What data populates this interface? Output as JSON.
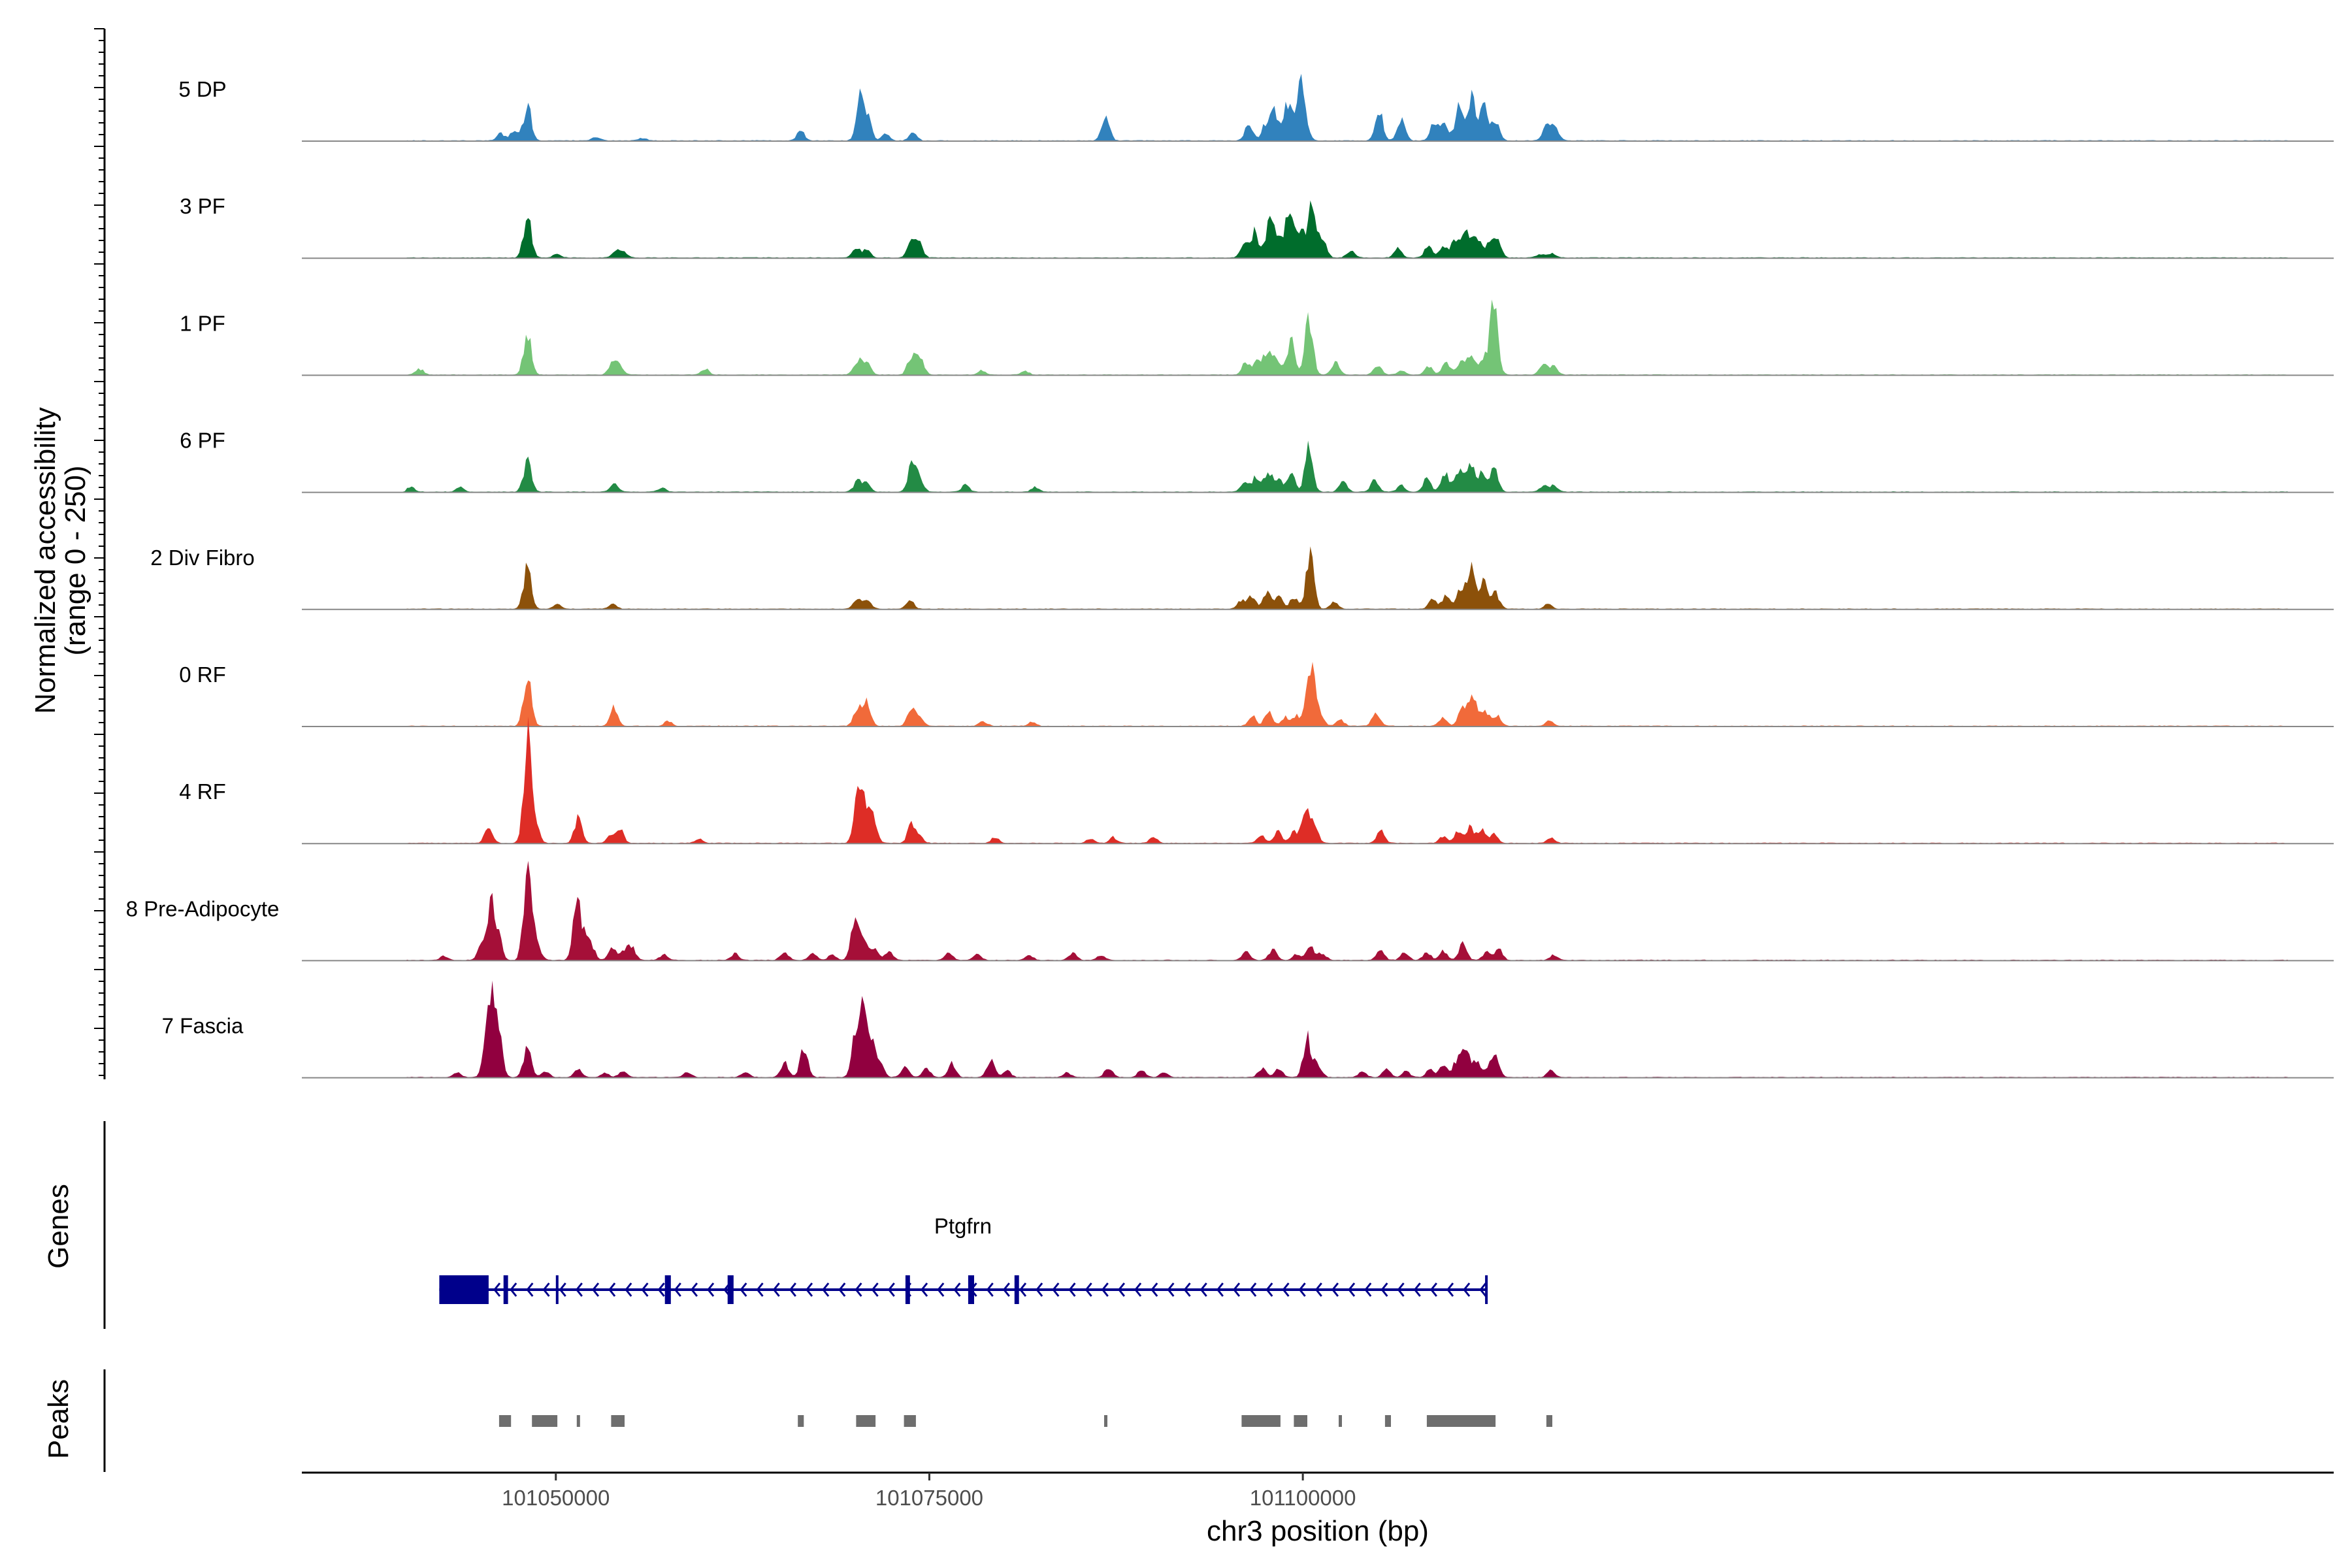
{
  "chart_data": {
    "type": "area",
    "title": "",
    "ylabel": "Normalized accessibility",
    "ylabel_range": "(range 0 - 250)",
    "xlabel": "chr3 position (bp)",
    "ylim": [
      0,
      250
    ],
    "xlim": [
      101033000,
      101169000
    ],
    "x_ticks": [
      101050000,
      101075000,
      101100000
    ],
    "x_tick_labels": [
      "101050000",
      "101075000",
      "101100000"
    ],
    "tracks": [
      {
        "name": "5 DP",
        "color": "#3182BD",
        "peaks": [
          [
            101046300,
            22
          ],
          [
            101047200,
            30
          ],
          [
            101048100,
            112
          ],
          [
            101052700,
            12
          ],
          [
            101055800,
            8
          ],
          [
            101066400,
            32
          ],
          [
            101070400,
            135
          ],
          [
            101070900,
            60
          ],
          [
            101072100,
            20
          ],
          [
            101073900,
            24
          ],
          [
            101086800,
            78
          ],
          [
            101096400,
            55
          ],
          [
            101097500,
            50
          ],
          [
            101098100,
            92
          ],
          [
            101099000,
            125
          ],
          [
            101099800,
            180
          ],
          [
            101100200,
            45
          ],
          [
            101105100,
            95
          ],
          [
            101106600,
            70
          ],
          [
            101108800,
            58
          ],
          [
            101109500,
            55
          ],
          [
            101110500,
            118
          ],
          [
            101111300,
            142
          ],
          [
            101112100,
            125
          ],
          [
            101112900,
            60
          ],
          [
            101116300,
            42
          ],
          [
            101116900,
            42
          ]
        ]
      },
      {
        "name": "3 PF",
        "color": "#006D2C",
        "peaks": [
          [
            101048100,
            135
          ],
          [
            101050100,
            12
          ],
          [
            101054000,
            20
          ],
          [
            101054500,
            18
          ],
          [
            101070100,
            30
          ],
          [
            101070800,
            25
          ],
          [
            101073800,
            55
          ],
          [
            101074300,
            50
          ],
          [
            101096100,
            42
          ],
          [
            101096800,
            80
          ],
          [
            101097800,
            125
          ],
          [
            101098400,
            60
          ],
          [
            101099100,
            168
          ],
          [
            101099800,
            92
          ],
          [
            101100600,
            180
          ],
          [
            101101300,
            70
          ],
          [
            101103200,
            22
          ],
          [
            101106400,
            30
          ],
          [
            101108400,
            35
          ],
          [
            101109400,
            42
          ],
          [
            101110200,
            58
          ],
          [
            101110900,
            88
          ],
          [
            101111600,
            72
          ],
          [
            101112400,
            40
          ],
          [
            101113000,
            58
          ],
          [
            101115900,
            12
          ],
          [
            101116700,
            12
          ]
        ]
      },
      {
        "name": "1 PF",
        "color": "#74C476",
        "peaks": [
          [
            101040900,
            18
          ],
          [
            101048100,
            135
          ],
          [
            101053800,
            38
          ],
          [
            101054300,
            28
          ],
          [
            101060000,
            20
          ],
          [
            101070200,
            48
          ],
          [
            101070800,
            40
          ],
          [
            101073800,
            60
          ],
          [
            101074400,
            50
          ],
          [
            101078500,
            14
          ],
          [
            101081400,
            12
          ],
          [
            101096200,
            40
          ],
          [
            101097000,
            55
          ],
          [
            101097700,
            80
          ],
          [
            101098300,
            48
          ],
          [
            101099200,
            108
          ],
          [
            101100400,
            190
          ],
          [
            101102200,
            40
          ],
          [
            101105000,
            30
          ],
          [
            101106600,
            15
          ],
          [
            101108400,
            28
          ],
          [
            101109600,
            40
          ],
          [
            101110600,
            42
          ],
          [
            101111300,
            65
          ],
          [
            101112100,
            52
          ],
          [
            101112800,
            240
          ],
          [
            101116100,
            30
          ],
          [
            101116800,
            26
          ]
        ]
      },
      {
        "name": "6 PF",
        "color": "#238B45",
        "peaks": [
          [
            101040300,
            16
          ],
          [
            101043600,
            14
          ],
          [
            101048100,
            100
          ],
          [
            101053900,
            26
          ],
          [
            101057100,
            12
          ],
          [
            101070200,
            35
          ],
          [
            101070800,
            28
          ],
          [
            101073800,
            82
          ],
          [
            101074300,
            55
          ],
          [
            101077400,
            22
          ],
          [
            101082100,
            16
          ],
          [
            101096100,
            32
          ],
          [
            101096900,
            48
          ],
          [
            101097700,
            62
          ],
          [
            101098400,
            35
          ],
          [
            101099200,
            62
          ],
          [
            101100400,
            142
          ],
          [
            101102700,
            36
          ],
          [
            101104800,
            35
          ],
          [
            101106600,
            22
          ],
          [
            101108300,
            42
          ],
          [
            101109500,
            62
          ],
          [
            101110400,
            72
          ],
          [
            101111200,
            98
          ],
          [
            101112000,
            58
          ],
          [
            101112800,
            75
          ],
          [
            101116100,
            18
          ],
          [
            101116800,
            20
          ]
        ]
      },
      {
        "name": "2 Div Fibro",
        "color": "#8C510A",
        "peaks": [
          [
            101048100,
            135
          ],
          [
            101050100,
            14
          ],
          [
            101053800,
            14
          ],
          [
            101070200,
            32
          ],
          [
            101070900,
            25
          ],
          [
            101073700,
            28
          ],
          [
            101095900,
            28
          ],
          [
            101096600,
            38
          ],
          [
            101097600,
            50
          ],
          [
            101098400,
            42
          ],
          [
            101099400,
            38
          ],
          [
            101100500,
            185
          ],
          [
            101102100,
            22
          ],
          [
            101108700,
            30
          ],
          [
            101109600,
            48
          ],
          [
            101110600,
            72
          ],
          [
            101111300,
            122
          ],
          [
            101112100,
            80
          ],
          [
            101112900,
            48
          ],
          [
            101116400,
            14
          ]
        ]
      },
      {
        "name": "0 RF",
        "color": "#F16A3A",
        "peaks": [
          [
            101048100,
            172
          ],
          [
            101053900,
            58
          ],
          [
            101057500,
            16
          ],
          [
            101070200,
            62
          ],
          [
            101070800,
            72
          ],
          [
            101073800,
            60
          ],
          [
            101074400,
            22
          ],
          [
            101078600,
            16
          ],
          [
            101081900,
            14
          ],
          [
            101096600,
            32
          ],
          [
            101097700,
            48
          ],
          [
            101098800,
            28
          ],
          [
            101099600,
            32
          ],
          [
            101100500,
            205
          ],
          [
            101101100,
            50
          ],
          [
            101102500,
            20
          ],
          [
            101104900,
            42
          ],
          [
            101109400,
            28
          ],
          [
            101110700,
            72
          ],
          [
            101111400,
            92
          ],
          [
            101112200,
            48
          ],
          [
            101113000,
            32
          ],
          [
            101116500,
            16
          ]
        ]
      },
      {
        "name": "4 RF",
        "color": "#DE2D26",
        "peaks": [
          [
            101045500,
            55
          ],
          [
            101048100,
            330
          ],
          [
            101048600,
            70
          ],
          [
            101051500,
            78
          ],
          [
            101053700,
            28
          ],
          [
            101054300,
            42
          ],
          [
            101059600,
            15
          ],
          [
            101070200,
            148
          ],
          [
            101070700,
            108
          ],
          [
            101071200,
            92
          ],
          [
            101073800,
            58
          ],
          [
            101074300,
            22
          ],
          [
            101079400,
            20
          ],
          [
            101085800,
            14
          ],
          [
            101087300,
            18
          ],
          [
            101090000,
            18
          ],
          [
            101097200,
            25
          ],
          [
            101098300,
            36
          ],
          [
            101099400,
            40
          ],
          [
            101100200,
            118
          ],
          [
            101100800,
            48
          ],
          [
            101105200,
            40
          ],
          [
            101109400,
            22
          ],
          [
            101110400,
            36
          ],
          [
            101111200,
            55
          ],
          [
            101112000,
            42
          ],
          [
            101112800,
            28
          ],
          [
            101116600,
            16
          ]
        ]
      },
      {
        "name": "8 Pre-Adipocyte",
        "color": "#A50F38",
        "peaks": [
          [
            101042500,
            12
          ],
          [
            101045000,
            40
          ],
          [
            101045600,
            165
          ],
          [
            101046100,
            90
          ],
          [
            101048100,
            300
          ],
          [
            101048700,
            70
          ],
          [
            101051400,
            178
          ],
          [
            101051900,
            60
          ],
          [
            101052400,
            40
          ],
          [
            101053800,
            40
          ],
          [
            101054600,
            30
          ],
          [
            101055100,
            38
          ],
          [
            101057200,
            18
          ],
          [
            101062000,
            20
          ],
          [
            101065300,
            28
          ],
          [
            101067200,
            22
          ],
          [
            101068500,
            18
          ],
          [
            101070000,
            138
          ],
          [
            101070600,
            75
          ],
          [
            101071300,
            40
          ],
          [
            101072300,
            26
          ],
          [
            101076300,
            26
          ],
          [
            101078200,
            20
          ],
          [
            101081700,
            16
          ],
          [
            101084600,
            22
          ],
          [
            101086500,
            16
          ],
          [
            101096200,
            26
          ],
          [
            101098000,
            32
          ],
          [
            101099600,
            20
          ],
          [
            101100500,
            40
          ],
          [
            101101300,
            22
          ],
          [
            101105200,
            30
          ],
          [
            101106800,
            28
          ],
          [
            101108300,
            25
          ],
          [
            101109400,
            30
          ],
          [
            101110700,
            55
          ],
          [
            101112300,
            25
          ],
          [
            101113100,
            35
          ],
          [
            101116800,
            16
          ]
        ]
      },
      {
        "name": "7 Fascia",
        "color": "#91003F",
        "peaks": [
          [
            101043400,
            14
          ],
          [
            101045300,
            60
          ],
          [
            101045700,
            245
          ],
          [
            101046200,
            120
          ],
          [
            101048100,
            102
          ],
          [
            101049300,
            20
          ],
          [
            101051500,
            24
          ],
          [
            101053300,
            14
          ],
          [
            101054500,
            20
          ],
          [
            101058800,
            16
          ],
          [
            101062700,
            18
          ],
          [
            101065300,
            48
          ],
          [
            101066600,
            90
          ],
          [
            101070100,
            148
          ],
          [
            101070600,
            195
          ],
          [
            101071100,
            112
          ],
          [
            101071700,
            40
          ],
          [
            101073400,
            36
          ],
          [
            101074800,
            30
          ],
          [
            101076500,
            44
          ],
          [
            101079100,
            52
          ],
          [
            101080200,
            20
          ],
          [
            101084200,
            15
          ],
          [
            101087000,
            32
          ],
          [
            101089200,
            20
          ],
          [
            101090700,
            18
          ],
          [
            101097300,
            30
          ],
          [
            101098400,
            26
          ],
          [
            101100300,
            125
          ],
          [
            101101000,
            40
          ],
          [
            101104000,
            18
          ],
          [
            101105600,
            24
          ],
          [
            101106900,
            20
          ],
          [
            101108500,
            26
          ],
          [
            101109400,
            36
          ],
          [
            101110300,
            52
          ],
          [
            101110900,
            80
          ],
          [
            101111600,
            55
          ],
          [
            101112400,
            28
          ],
          [
            101112900,
            62
          ],
          [
            101116600,
            20
          ]
        ]
      }
    ],
    "gene": {
      "name": "Ptgfrn",
      "color": "#00008B",
      "start": 101042200,
      "end": 101112300,
      "strand": "-",
      "exons": [
        [
          101042200,
          101045500
        ],
        [
          101046500,
          101046800
        ],
        [
          101050000,
          101050080
        ],
        [
          101057300,
          101057700
        ],
        [
          101061500,
          101061900
        ],
        [
          101073400,
          101073700
        ],
        [
          101077600,
          101078000
        ],
        [
          101080700,
          101081000
        ],
        [
          101112200,
          101112300
        ]
      ]
    },
    "peak_regions": [
      [
        101046200,
        101047000
      ],
      [
        101048400,
        101050100
      ],
      [
        101051400,
        101051600
      ],
      [
        101053700,
        101054600
      ],
      [
        101066200,
        101066600
      ],
      [
        101070100,
        101071400
      ],
      [
        101073300,
        101074100
      ],
      [
        101086700,
        101086800
      ],
      [
        101095900,
        101098500
      ],
      [
        101099400,
        101100300
      ],
      [
        101102400,
        101102500
      ],
      [
        101105500,
        101105900
      ],
      [
        101108300,
        101112900
      ],
      [
        101116300,
        101116700
      ]
    ],
    "sections": {
      "genes": "Genes",
      "peaks": "Peaks"
    },
    "colors": {
      "baseline": "#888888",
      "peak_box": "#6E6E6E",
      "axis": "#000000"
    }
  }
}
